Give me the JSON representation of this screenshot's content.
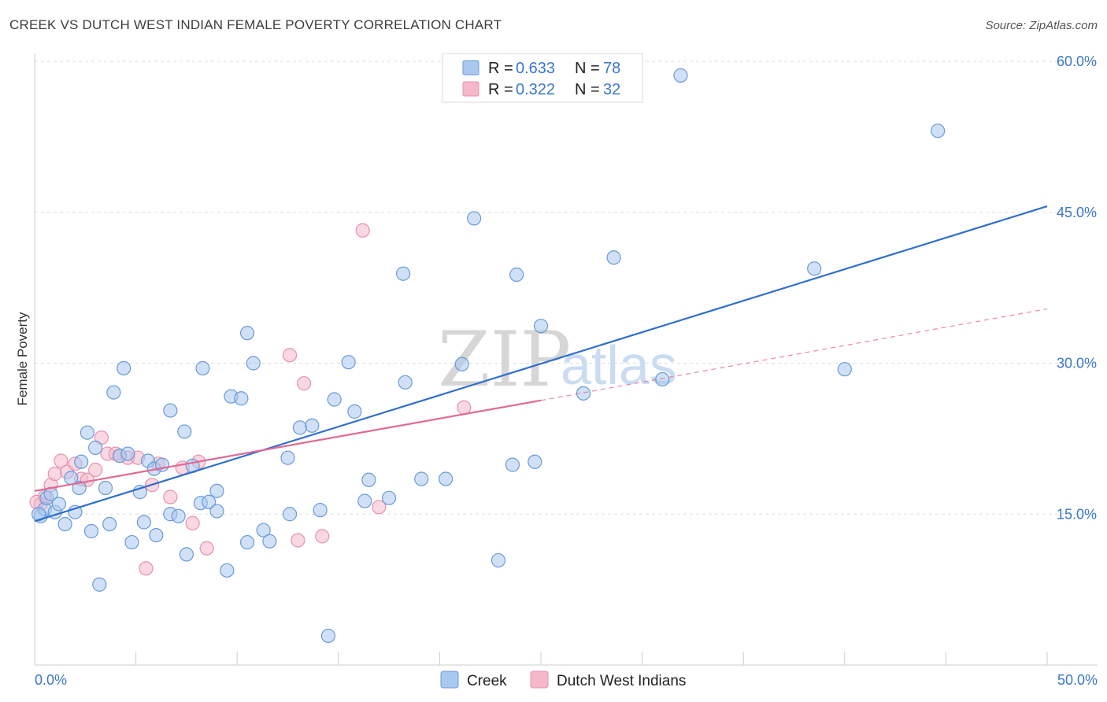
{
  "header": {
    "title": "CREEK VS DUTCH WEST INDIAN FEMALE POVERTY CORRELATION CHART",
    "source": "Source: ZipAtlas.com"
  },
  "watermark": {
    "zip": "ZIP",
    "atlas": "atlas"
  },
  "legend_top": [
    {
      "r_label": "R =",
      "r_value": "0.633",
      "n_label": "N =",
      "n_value": "78"
    },
    {
      "r_label": "R =",
      "r_value": "0.322",
      "n_label": "N =",
      "n_value": "32"
    }
  ],
  "legend_bottom": [
    "Creek",
    "Dutch West Indians"
  ],
  "colors": {
    "creek_fill": "#a9c8f0",
    "creek_stroke": "#6a9ad8",
    "creek_line": "#2f6fcc",
    "dwi_fill": "#f5b8cb",
    "dwi_stroke": "#e890ad",
    "dwi_line": "#e06a94",
    "tick_text": "#3a78c9",
    "grid": "#dddddd"
  },
  "chart_data": {
    "type": "scatter",
    "title": "CREEK VS DUTCH WEST INDIAN FEMALE POVERTY CORRELATION CHART",
    "xlabel": "",
    "ylabel": "Female Poverty",
    "xlim": [
      0,
      50
    ],
    "ylim": [
      0,
      60
    ],
    "x_tick_labels": [
      "0.0%",
      "50.0%"
    ],
    "y_ticks": [
      15,
      30,
      45,
      60
    ],
    "y_tick_labels": [
      "15.0%",
      "30.0%",
      "45.0%",
      "60.0%"
    ],
    "grid": "horizontal dashed",
    "legend_position": "top-center",
    "series": [
      {
        "name": "Creek",
        "R": 0.633,
        "N": 78,
        "trend": {
          "x": [
            0,
            50
          ],
          "y": [
            14.3,
            45.6
          ]
        },
        "points": [
          [
            0.3,
            14.8
          ],
          [
            0.5,
            15.5
          ],
          [
            0.6,
            16.6
          ],
          [
            0.8,
            17.0
          ],
          [
            1.0,
            15.2
          ],
          [
            1.2,
            16.0
          ],
          [
            1.5,
            14.0
          ],
          [
            1.8,
            18.6
          ],
          [
            2.0,
            15.2
          ],
          [
            2.2,
            17.6
          ],
          [
            2.3,
            20.2
          ],
          [
            2.6,
            23.1
          ],
          [
            2.8,
            13.3
          ],
          [
            3.0,
            21.6
          ],
          [
            3.2,
            8.0
          ],
          [
            3.5,
            17.6
          ],
          [
            3.7,
            14.0
          ],
          [
            3.9,
            27.1
          ],
          [
            4.2,
            20.8
          ],
          [
            4.4,
            29.5
          ],
          [
            4.6,
            21.0
          ],
          [
            4.8,
            12.2
          ],
          [
            5.2,
            17.2
          ],
          [
            5.4,
            14.2
          ],
          [
            5.6,
            20.3
          ],
          [
            5.9,
            19.5
          ],
          [
            6.0,
            12.9
          ],
          [
            6.3,
            19.9
          ],
          [
            6.7,
            25.3
          ],
          [
            6.7,
            15.0
          ],
          [
            7.1,
            14.8
          ],
          [
            7.4,
            23.2
          ],
          [
            7.5,
            11.0
          ],
          [
            7.8,
            19.8
          ],
          [
            8.2,
            16.1
          ],
          [
            8.3,
            29.5
          ],
          [
            8.6,
            16.2
          ],
          [
            9.0,
            15.3
          ],
          [
            9.0,
            17.3
          ],
          [
            9.5,
            9.4
          ],
          [
            9.7,
            26.7
          ],
          [
            10.2,
            26.5
          ],
          [
            10.5,
            33.0
          ],
          [
            10.5,
            12.2
          ],
          [
            10.8,
            30.0
          ],
          [
            11.3,
            13.4
          ],
          [
            11.6,
            12.3
          ],
          [
            12.5,
            20.6
          ],
          [
            12.6,
            15.0
          ],
          [
            13.1,
            23.6
          ],
          [
            13.7,
            23.8
          ],
          [
            14.1,
            15.4
          ],
          [
            14.5,
            2.9
          ],
          [
            14.8,
            26.4
          ],
          [
            15.5,
            30.1
          ],
          [
            15.8,
            25.2
          ],
          [
            16.3,
            16.3
          ],
          [
            16.5,
            18.4
          ],
          [
            17.5,
            16.6
          ],
          [
            18.2,
            38.9
          ],
          [
            18.3,
            28.1
          ],
          [
            19.1,
            18.5
          ],
          [
            20.3,
            18.5
          ],
          [
            21.1,
            29.9
          ],
          [
            21.7,
            44.4
          ],
          [
            22.9,
            10.4
          ],
          [
            23.6,
            19.9
          ],
          [
            23.8,
            38.8
          ],
          [
            24.7,
            20.2
          ],
          [
            25.0,
            33.7
          ],
          [
            27.1,
            27.0
          ],
          [
            28.6,
            40.5
          ],
          [
            31.0,
            28.4
          ],
          [
            31.9,
            58.6
          ],
          [
            38.5,
            39.4
          ],
          [
            40.0,
            29.4
          ],
          [
            44.6,
            53.1
          ],
          [
            0.2,
            15.0
          ]
        ]
      },
      {
        "name": "Dutch West Indians",
        "R": 0.322,
        "N": 32,
        "trend": {
          "x": [
            0,
            25
          ],
          "y": [
            17.3,
            26.3
          ]
        },
        "trend_extension": {
          "x": [
            25,
            50
          ],
          "y": [
            26.3,
            35.4
          ]
        },
        "points": [
          [
            0.3,
            16.0
          ],
          [
            0.5,
            16.7
          ],
          [
            0.8,
            17.9
          ],
          [
            1.0,
            19.0
          ],
          [
            1.3,
            20.3
          ],
          [
            1.6,
            19.2
          ],
          [
            2.0,
            20.0
          ],
          [
            2.3,
            18.5
          ],
          [
            2.6,
            18.4
          ],
          [
            3.0,
            19.4
          ],
          [
            3.3,
            22.6
          ],
          [
            3.6,
            21.0
          ],
          [
            4.0,
            21.0
          ],
          [
            4.2,
            20.8
          ],
          [
            4.6,
            20.6
          ],
          [
            5.1,
            20.6
          ],
          [
            5.5,
            9.6
          ],
          [
            5.8,
            17.9
          ],
          [
            6.1,
            20.0
          ],
          [
            6.7,
            16.7
          ],
          [
            7.3,
            19.6
          ],
          [
            7.8,
            14.1
          ],
          [
            8.1,
            20.2
          ],
          [
            8.5,
            11.6
          ],
          [
            12.6,
            30.8
          ],
          [
            13.0,
            12.4
          ],
          [
            13.3,
            28.0
          ],
          [
            14.2,
            12.8
          ],
          [
            16.2,
            43.2
          ],
          [
            17.0,
            15.7
          ],
          [
            21.2,
            25.6
          ],
          [
            0.1,
            16.2
          ]
        ]
      }
    ]
  }
}
